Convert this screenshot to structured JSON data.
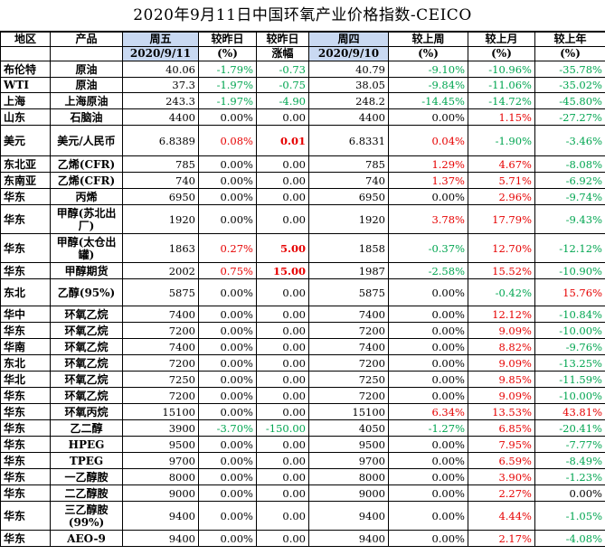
{
  "title": "2020年9月11日中国环氧产业价格指数-CEICO",
  "headers": {
    "row1": [
      "地区",
      "产品",
      "周五",
      "较昨日",
      "较昨日",
      "周四",
      "较上周",
      "较上月",
      "较上年"
    ],
    "row2": [
      "",
      "",
      "2020/9/11",
      "(%)",
      "涨幅",
      "2020/9/10",
      "(%)",
      "(%)",
      "(%)"
    ]
  },
  "colors": {
    "positive": "#e60000",
    "negative": "#00a550",
    "header_blue": "#c9d9f2"
  },
  "rows": [
    {
      "region": "布伦特",
      "product": "原油",
      "fri": "40.06",
      "dd_pct": "-1.79%",
      "dd_amt": "-0.73",
      "thu": "40.79",
      "wk": "-9.10%",
      "mo": "-10.96%",
      "yr": "-35.78%"
    },
    {
      "region": "WTI",
      "product": "原油",
      "fri": "37.3",
      "dd_pct": "-1.97%",
      "dd_amt": "-0.75",
      "thu": "38.05",
      "wk": "-9.84%",
      "mo": "-11.06%",
      "yr": "-35.02%"
    },
    {
      "region": "上海",
      "product": "上海原油",
      "fri": "243.3",
      "dd_pct": "-1.97%",
      "dd_amt": "-4.90",
      "thu": "248.2",
      "wk": "-14.45%",
      "mo": "-14.72%",
      "yr": "-45.80%"
    },
    {
      "region": "山东",
      "product": "石脑油",
      "fri": "4400",
      "dd_pct": "0.00%",
      "dd_amt": "0.00",
      "thu": "4400",
      "wk": "0.00%",
      "mo": "1.15%",
      "yr": "-27.27%"
    },
    {
      "region": "美元",
      "product": "美元/人民币",
      "fri": "6.8389",
      "dd_pct": "0.08%",
      "dd_amt": "0.01",
      "thu": "6.8331",
      "wk": "0.04%",
      "mo": "-1.90%",
      "yr": "-3.46%"
    },
    {
      "region": "东北亚",
      "product": "乙烯(CFR)",
      "fri": "785",
      "dd_pct": "0.00%",
      "dd_amt": "0.00",
      "thu": "785",
      "wk": "1.29%",
      "mo": "4.67%",
      "yr": "-8.08%"
    },
    {
      "region": "东南亚",
      "product": "乙烯(CFR)",
      "fri": "740",
      "dd_pct": "0.00%",
      "dd_amt": "0.00",
      "thu": "740",
      "wk": "1.37%",
      "mo": "5.71%",
      "yr": "-6.92%"
    },
    {
      "region": "华东",
      "product": "丙烯",
      "fri": "6950",
      "dd_pct": "0.00%",
      "dd_amt": "0.00",
      "thu": "6950",
      "wk": "0.00%",
      "mo": "2.96%",
      "yr": "-9.74%"
    },
    {
      "region": "华东",
      "product": "甲醇(苏北出厂)",
      "fri": "1920",
      "dd_pct": "0.00%",
      "dd_amt": "0.00",
      "thu": "1920",
      "wk": "3.78%",
      "mo": "17.79%",
      "yr": "-9.43%"
    },
    {
      "region": "华东",
      "product": "甲醇(太仓出罐)",
      "fri": "1863",
      "dd_pct": "0.27%",
      "dd_amt": "5.00",
      "thu": "1858",
      "wk": "-0.37%",
      "mo": "12.70%",
      "yr": "-12.12%"
    },
    {
      "region": "华东",
      "product": "甲醇期货",
      "fri": "2002",
      "dd_pct": "0.75%",
      "dd_amt": "15.00",
      "thu": "1987",
      "wk": "-2.58%",
      "mo": "15.52%",
      "yr": "-10.90%"
    },
    {
      "region": "东北",
      "product": "乙醇(95%)",
      "fri": "5875",
      "dd_pct": "0.00%",
      "dd_amt": "0.00",
      "thu": "5875",
      "wk": "0.00%",
      "mo": "-0.42%",
      "yr": "15.76%"
    },
    {
      "region": "华中",
      "product": "环氧乙烷",
      "fri": "7400",
      "dd_pct": "0.00%",
      "dd_amt": "0.00",
      "thu": "7400",
      "wk": "0.00%",
      "mo": "12.12%",
      "yr": "-10.84%"
    },
    {
      "region": "华东",
      "product": "环氧乙烷",
      "fri": "7200",
      "dd_pct": "0.00%",
      "dd_amt": "0.00",
      "thu": "7200",
      "wk": "0.00%",
      "mo": "9.09%",
      "yr": "-10.00%"
    },
    {
      "region": "华南",
      "product": "环氧乙烷",
      "fri": "7400",
      "dd_pct": "0.00%",
      "dd_amt": "0.00",
      "thu": "7400",
      "wk": "0.00%",
      "mo": "8.82%",
      "yr": "-9.76%"
    },
    {
      "region": "东北",
      "product": "环氧乙烷",
      "fri": "7200",
      "dd_pct": "0.00%",
      "dd_amt": "0.00",
      "thu": "7200",
      "wk": "0.00%",
      "mo": "9.09%",
      "yr": "-13.25%"
    },
    {
      "region": "华北",
      "product": "环氧乙烷",
      "fri": "7250",
      "dd_pct": "0.00%",
      "dd_amt": "0.00",
      "thu": "7250",
      "wk": "0.00%",
      "mo": "9.85%",
      "yr": "-11.59%"
    },
    {
      "region": "华东",
      "product": "环氧乙烷",
      "fri": "7200",
      "dd_pct": "0.00%",
      "dd_amt": "0.00",
      "thu": "7200",
      "wk": "0.00%",
      "mo": "9.09%",
      "yr": "-10.00%"
    },
    {
      "region": "华东",
      "product": "环氧丙烷",
      "fri": "15100",
      "dd_pct": "0.00%",
      "dd_amt": "0.00",
      "thu": "15100",
      "wk": "6.34%",
      "mo": "13.53%",
      "yr": "43.81%"
    },
    {
      "region": "华东",
      "product": "乙二醇",
      "fri": "3900",
      "dd_pct": "-3.70%",
      "dd_amt": "-150.00",
      "thu": "4050",
      "wk": "-1.27%",
      "mo": "6.85%",
      "yr": "-20.41%"
    },
    {
      "region": "华东",
      "product": "HPEG",
      "fri": "9500",
      "dd_pct": "0.00%",
      "dd_amt": "0.00",
      "thu": "9500",
      "wk": "0.00%",
      "mo": "7.95%",
      "yr": "-7.77%"
    },
    {
      "region": "华东",
      "product": "TPEG",
      "fri": "9700",
      "dd_pct": "0.00%",
      "dd_amt": "0.00",
      "thu": "9700",
      "wk": "0.00%",
      "mo": "6.59%",
      "yr": "-8.49%"
    },
    {
      "region": "华东",
      "product": "一乙醇胺",
      "fri": "8000",
      "dd_pct": "0.00%",
      "dd_amt": "0.00",
      "thu": "8000",
      "wk": "0.00%",
      "mo": "3.90%",
      "yr": "-1.23%"
    },
    {
      "region": "华东",
      "product": "二乙醇胺",
      "fri": "9000",
      "dd_pct": "0.00%",
      "dd_amt": "0.00",
      "thu": "9000",
      "wk": "0.00%",
      "mo": "2.27%",
      "yr": "0.00%"
    },
    {
      "region": "华东",
      "product": "三乙醇胺(99%)",
      "fri": "9400",
      "dd_pct": "0.00%",
      "dd_amt": "0.00",
      "thu": "9400",
      "wk": "0.00%",
      "mo": "4.44%",
      "yr": "-1.05%"
    },
    {
      "region": "华东",
      "product": "AEO-9",
      "fri": "9400",
      "dd_pct": "0.00%",
      "dd_amt": "0.00",
      "thu": "9400",
      "wk": "0.00%",
      "mo": "2.17%",
      "yr": "-4.08%"
    }
  ]
}
